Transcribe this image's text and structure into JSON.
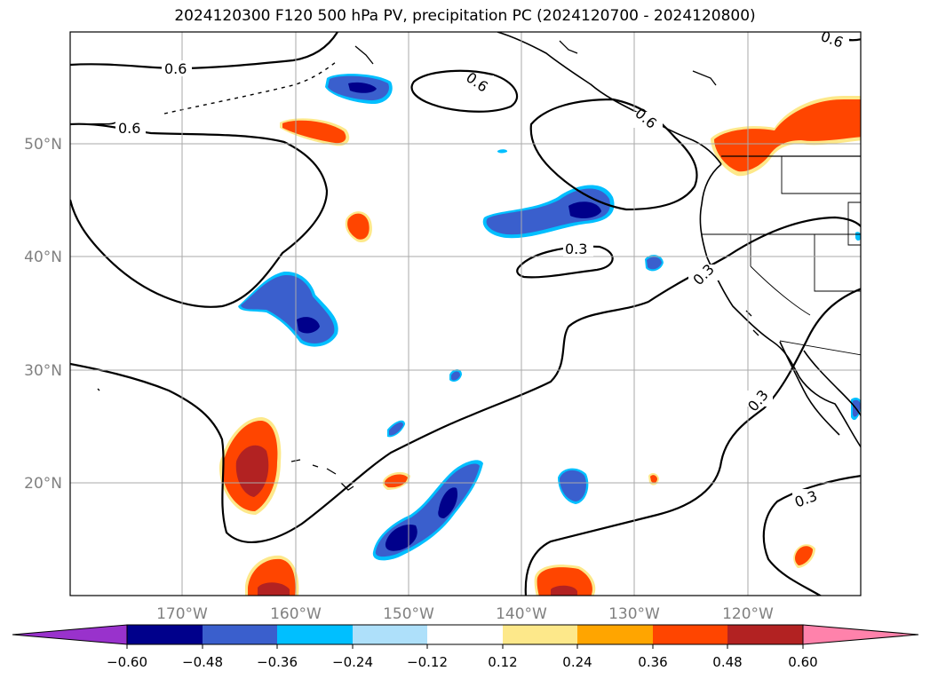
{
  "title": "2024120300 F120 500 hPa PV, precipitation PC (2024120700 - 2024120800)",
  "map": {
    "lat_labels": [
      "50°N",
      "40°N",
      "30°N",
      "20°N"
    ],
    "lon_labels": [
      "170°W",
      "160°W",
      "150°W",
      "140°W",
      "130°W",
      "120°W"
    ],
    "contour_labels": [
      "0.6",
      "0.6",
      "0.6",
      "0.6",
      "0.6",
      "0.3",
      "0.3",
      "0.3",
      "0.3"
    ],
    "gridline_color": "#aaaaaa",
    "label_color": "#808080"
  },
  "colorbar": {
    "ticks": [
      "−0.60",
      "−0.48",
      "−0.36",
      "−0.24",
      "−0.12",
      "0.12",
      "0.24",
      "0.36",
      "0.48",
      "0.60"
    ],
    "colors": {
      "under": "#9932cc",
      "neg_060": "#00008b",
      "neg_048": "#3a5fcd",
      "neg_036": "#00bfff",
      "neg_024": "#aee0fa",
      "zero": "#ffffff",
      "pos_012": "#fde88a",
      "pos_024": "#ffa500",
      "pos_036": "#ff4500",
      "pos_048": "#b22222",
      "over": "#ff82ab"
    }
  }
}
